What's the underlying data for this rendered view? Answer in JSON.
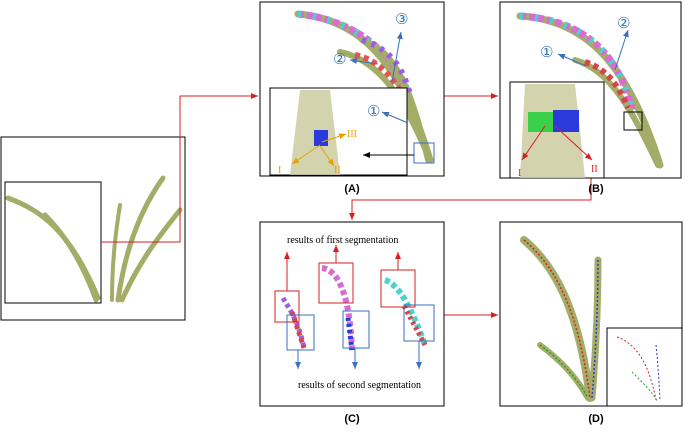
{
  "panels": {
    "A": {
      "label": "(A)",
      "callouts": [
        "③",
        "②",
        "①"
      ],
      "inset_labels": [
        "III",
        "I",
        "II"
      ]
    },
    "B": {
      "label": "(B)",
      "callouts": [
        "②",
        "①"
      ],
      "inset_labels": [
        "I",
        "II"
      ]
    },
    "C": {
      "label": "(C)",
      "first": "results of first segmentation",
      "second": "results of second segmentation"
    },
    "D": {
      "label": "(D)"
    }
  }
}
